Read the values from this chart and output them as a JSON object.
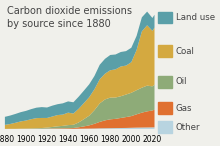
{
  "title": "Carbon dioxide emissions\nby source since 1880",
  "title_fontsize": 7.0,
  "years": [
    1880,
    1885,
    1890,
    1895,
    1900,
    1905,
    1910,
    1915,
    1920,
    1925,
    1930,
    1935,
    1940,
    1945,
    1950,
    1955,
    1960,
    1965,
    1970,
    1975,
    1980,
    1985,
    1990,
    1995,
    2000,
    2005,
    2010,
    2015,
    2020,
    2022
  ],
  "sources": [
    "Other",
    "Gas",
    "Oil",
    "Coal",
    "Land use"
  ],
  "colors": [
    "#b8d4e0",
    "#e07030",
    "#8eab78",
    "#d4a940",
    "#5a9fa8"
  ],
  "data": {
    "Other": [
      0.01,
      0.01,
      0.01,
      0.01,
      0.01,
      0.01,
      0.02,
      0.02,
      0.02,
      0.02,
      0.02,
      0.02,
      0.02,
      0.02,
      0.03,
      0.04,
      0.05,
      0.06,
      0.08,
      0.09,
      0.1,
      0.11,
      0.12,
      0.13,
      0.15,
      0.17,
      0.18,
      0.19,
      0.2,
      0.2
    ],
    "Gas": [
      0.0,
      0.0,
      0.0,
      0.01,
      0.01,
      0.01,
      0.02,
      0.02,
      0.03,
      0.05,
      0.06,
      0.07,
      0.08,
      0.1,
      0.18,
      0.28,
      0.4,
      0.58,
      0.8,
      0.98,
      1.1,
      1.15,
      1.25,
      1.35,
      1.45,
      1.65,
      1.85,
      2.0,
      2.1,
      2.2
    ],
    "Oil": [
      0.0,
      0.01,
      0.01,
      0.02,
      0.03,
      0.05,
      0.06,
      0.08,
      0.12,
      0.18,
      0.25,
      0.3,
      0.38,
      0.4,
      0.6,
      0.9,
      1.2,
      1.7,
      2.3,
      2.6,
      2.7,
      2.65,
      2.7,
      2.8,
      2.9,
      3.0,
      3.1,
      3.2,
      3.0,
      3.1
    ],
    "Coal": [
      0.5,
      0.6,
      0.75,
      0.9,
      1.0,
      1.15,
      1.25,
      1.25,
      1.2,
      1.3,
      1.4,
      1.4,
      1.55,
      1.4,
      1.7,
      2.0,
      2.3,
      2.6,
      3.0,
      3.2,
      3.4,
      3.5,
      3.7,
      3.6,
      3.8,
      5.0,
      7.0,
      7.5,
      6.9,
      7.1
    ],
    "Land use": [
      1.0,
      1.05,
      1.1,
      1.15,
      1.2,
      1.25,
      1.3,
      1.35,
      1.3,
      1.35,
      1.35,
      1.4,
      1.4,
      1.4,
      1.5,
      1.55,
      1.6,
      1.65,
      1.8,
      1.85,
      1.9,
      1.85,
      1.8,
      1.8,
      1.8,
      1.75,
      1.75,
      1.7,
      1.6,
      1.6
    ]
  },
  "legend_labels": [
    "Land use",
    "Coal",
    "Oil",
    "Gas",
    "Other"
  ],
  "legend_colors": [
    "#5a9fa8",
    "#d4a940",
    "#8eab78",
    "#e07030",
    "#b8d4e0"
  ],
  "xlabel_ticks": [
    1880,
    1900,
    1920,
    1940,
    1960,
    1980,
    2000,
    2020
  ],
  "background_color": "#f0f0eb",
  "tick_fontsize": 5.5,
  "legend_fontsize": 6.2,
  "title_color": "#444444"
}
